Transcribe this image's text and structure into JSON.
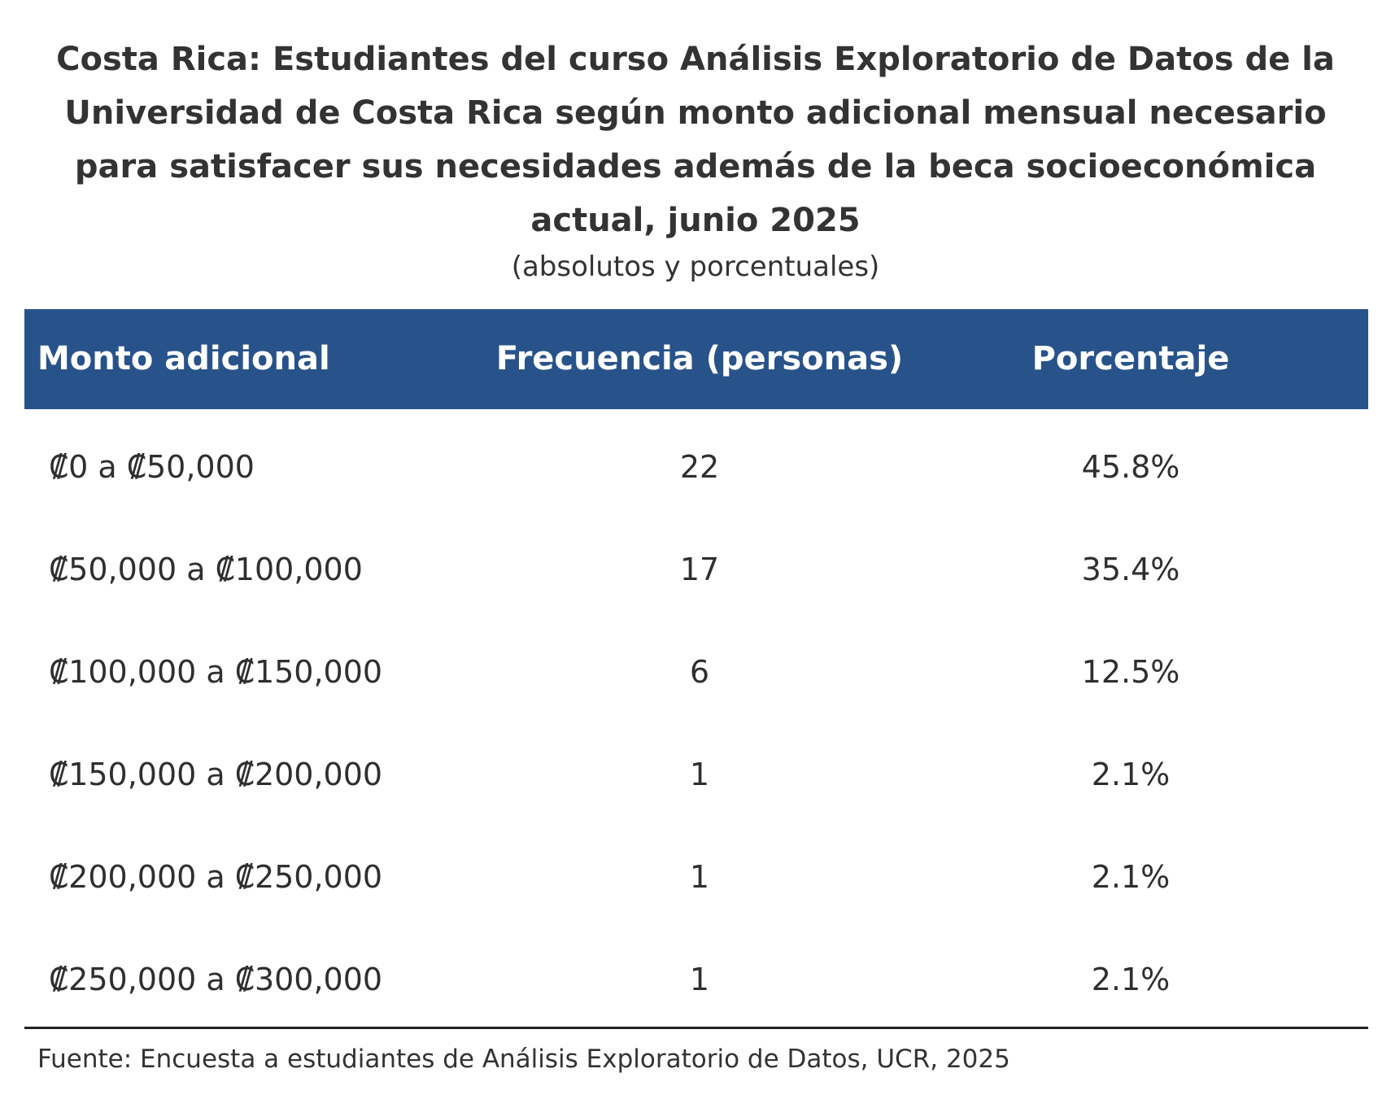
{
  "title": "Costa Rica: Estudiantes del curso Análisis Exploratorio de Datos de la Universidad de Costa Rica según monto adicional mensual necesario para satisfacer sus necesidades además de la beca socioeconómica actual, junio 2025",
  "subtitle": "(absolutos y porcentuales)",
  "table": {
    "headers": [
      "Monto adicional",
      "Frecuencia (personas)",
      "Porcentaje"
    ],
    "rows": [
      {
        "range": "₡0 a ₡50,000",
        "frequency": "22",
        "percentage": "45.8%"
      },
      {
        "range": "₡50,000 a ₡100,000",
        "frequency": "17",
        "percentage": "35.4%"
      },
      {
        "range": "₡100,000 a ₡150,000",
        "frequency": "6",
        "percentage": "12.5%"
      },
      {
        "range": "₡150,000 a ₡200,000",
        "frequency": "1",
        "percentage": "2.1%"
      },
      {
        "range": "₡200,000 a ₡250,000",
        "frequency": "1",
        "percentage": "2.1%"
      },
      {
        "range": "₡250,000 a ₡300,000",
        "frequency": "1",
        "percentage": "2.1%"
      }
    ]
  },
  "source": "Fuente: Encuesta a estudiantes de Análisis Exploratorio de Datos, UCR, 2025",
  "colors": {
    "header_background": "#28538a",
    "header_text": "#ffffff",
    "body_text": "#2f2f2f"
  }
}
